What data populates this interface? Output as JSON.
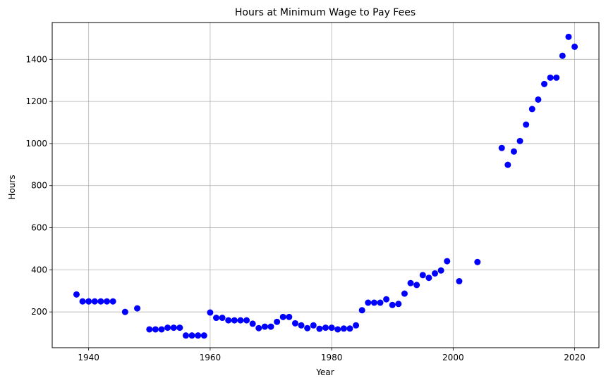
{
  "chart_data": {
    "type": "scatter",
    "title": "Hours at Minimum Wage to Pay Fees",
    "xlabel": "Year",
    "ylabel": "Hours",
    "xlim": [
      1934,
      2024
    ],
    "ylim": [
      30,
      1575
    ],
    "xticks": [
      1940,
      1960,
      1980,
      2000,
      2020
    ],
    "yticks": [
      200,
      400,
      600,
      800,
      1000,
      1200,
      1400
    ],
    "grid": true,
    "marker_color": "#0000ff",
    "series": [
      {
        "x": [
          1938,
          1939,
          1940,
          1941,
          1942,
          1943,
          1944,
          1946,
          1948,
          1950,
          1951,
          1952,
          1953,
          1954,
          1955,
          1956,
          1957,
          1958,
          1959,
          1960,
          1961,
          1962,
          1963,
          1964,
          1965,
          1966,
          1967,
          1968,
          1969,
          1970,
          1971,
          1972,
          1973,
          1974,
          1975,
          1976,
          1977,
          1978,
          1979,
          1980,
          1981,
          1982,
          1983,
          1984,
          1985,
          1986,
          1987,
          1988,
          1989,
          1990,
          1991,
          1992,
          1993,
          1994,
          1995,
          1996,
          1997,
          1998,
          1999,
          2001,
          2004,
          2008,
          2009,
          2010,
          2011,
          2012,
          2013,
          2014,
          2015,
          2016,
          2017,
          2018,
          2019,
          2020
        ],
        "y": [
          283,
          250,
          250,
          250,
          250,
          250,
          250,
          200,
          217,
          117,
          117,
          117,
          125,
          125,
          125,
          88,
          88,
          88,
          88,
          197,
          172,
          172,
          160,
          160,
          160,
          160,
          144,
          123,
          130,
          130,
          153,
          176,
          176,
          146,
          136,
          123,
          136,
          120,
          125,
          125,
          117,
          121,
          121,
          136,
          208,
          244,
          244,
          244,
          260,
          233,
          238,
          287,
          337,
          328,
          375,
          362,
          383,
          397,
          441,
          346,
          437,
          979,
          899,
          962,
          1012,
          1090,
          1164,
          1209,
          1283,
          1313,
          1313,
          1417,
          1507,
          1460
        ]
      }
    ]
  }
}
